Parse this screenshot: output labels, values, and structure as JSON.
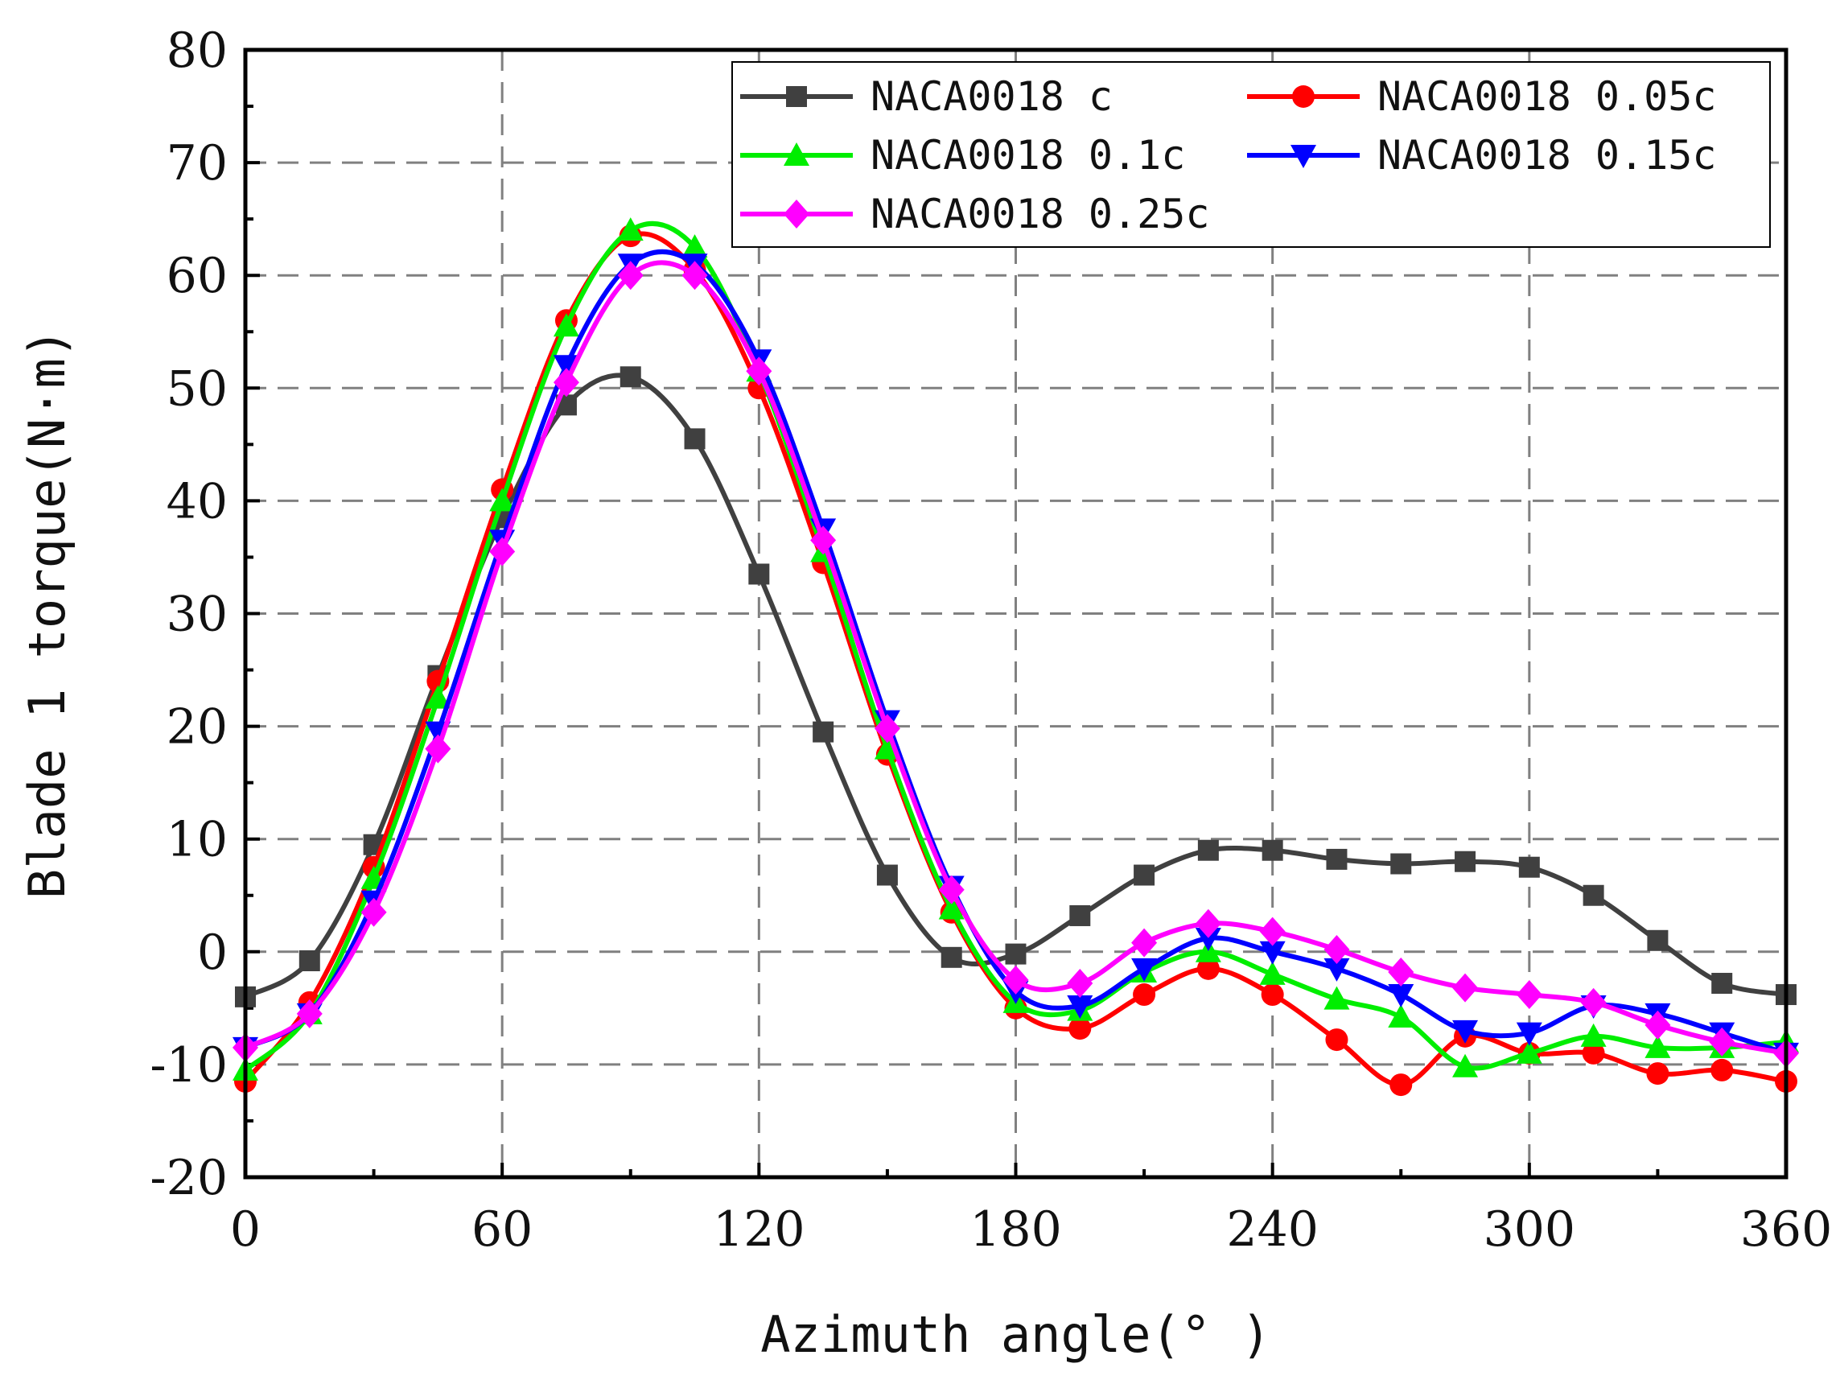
{
  "chart_data": {
    "type": "line",
    "title": "",
    "xlabel": "Azimuth angle(° )",
    "ylabel": "Blade 1 torque(N·m)",
    "xlim": [
      0,
      360
    ],
    "ylim": [
      -20,
      80
    ],
    "xticks": [
      "0",
      "60",
      "120",
      "180",
      "240",
      "300",
      "360"
    ],
    "yticks": [
      "-20",
      "-10",
      "0",
      "10",
      "20",
      "30",
      "40",
      "50",
      "60",
      "70",
      "80"
    ],
    "grid": true,
    "legend_position": "top-right",
    "series": [
      {
        "name": "NACA0018 c",
        "color": "#404040",
        "marker": "square",
        "points": [
          [
            0,
            -4
          ],
          [
            15,
            -0.8
          ],
          [
            30,
            9.5
          ],
          [
            45,
            24.5
          ],
          [
            60,
            38.5
          ],
          [
            75,
            48.5
          ],
          [
            90,
            51
          ],
          [
            105,
            45.5
          ],
          [
            120,
            33.5
          ],
          [
            135,
            19.5
          ],
          [
            150,
            6.8
          ],
          [
            165,
            -0.5
          ],
          [
            180,
            -0.2
          ],
          [
            195,
            3.2
          ],
          [
            210,
            6.8
          ],
          [
            225,
            9
          ],
          [
            240,
            9
          ],
          [
            255,
            8.2
          ],
          [
            270,
            7.8
          ],
          [
            285,
            8
          ],
          [
            300,
            7.5
          ],
          [
            315,
            5
          ],
          [
            330,
            1
          ],
          [
            345,
            -2.8
          ],
          [
            360,
            -3.8
          ]
        ]
      },
      {
        "name": "NACA0018 0.05c",
        "color": "#ff0000",
        "marker": "circle",
        "points": [
          [
            0,
            -11.5
          ],
          [
            15,
            -4.5
          ],
          [
            30,
            7.5
          ],
          [
            45,
            24
          ],
          [
            60,
            41
          ],
          [
            75,
            56
          ],
          [
            90,
            63.5
          ],
          [
            105,
            60.5
          ],
          [
            120,
            50
          ],
          [
            135,
            34.5
          ],
          [
            150,
            17.5
          ],
          [
            165,
            3.5
          ],
          [
            180,
            -5
          ],
          [
            195,
            -6.8
          ],
          [
            210,
            -3.8
          ],
          [
            225,
            -1.5
          ],
          [
            240,
            -3.8
          ],
          [
            255,
            -7.8
          ],
          [
            270,
            -11.8
          ],
          [
            285,
            -7.5
          ],
          [
            300,
            -9
          ],
          [
            315,
            -9
          ],
          [
            330,
            -10.8
          ],
          [
            345,
            -10.5
          ],
          [
            360,
            -11.5
          ]
        ]
      },
      {
        "name": "NACA0018 0.1c",
        "color": "#00ee00",
        "marker": "triangle-up",
        "points": [
          [
            0,
            -10.5
          ],
          [
            15,
            -5.5
          ],
          [
            30,
            6.5
          ],
          [
            45,
            22.5
          ],
          [
            60,
            40
          ],
          [
            75,
            55.5
          ],
          [
            90,
            64
          ],
          [
            105,
            62.5
          ],
          [
            120,
            51.5
          ],
          [
            135,
            35.5
          ],
          [
            150,
            18
          ],
          [
            165,
            3.8
          ],
          [
            180,
            -4.5
          ],
          [
            195,
            -5.2
          ],
          [
            210,
            -1.8
          ],
          [
            225,
            0
          ],
          [
            240,
            -2
          ],
          [
            255,
            -4.2
          ],
          [
            270,
            -5.8
          ],
          [
            285,
            -10.2
          ],
          [
            300,
            -9
          ],
          [
            315,
            -7.5
          ],
          [
            330,
            -8.5
          ],
          [
            345,
            -8.5
          ],
          [
            360,
            -8
          ]
        ]
      },
      {
        "name": "NACA0018 0.15c",
        "color": "#0000ff",
        "marker": "triangle-down",
        "points": [
          [
            0,
            -8.5
          ],
          [
            15,
            -5.5
          ],
          [
            30,
            4.5
          ],
          [
            45,
            19.5
          ],
          [
            60,
            36.5
          ],
          [
            75,
            52
          ],
          [
            90,
            61
          ],
          [
            105,
            61
          ],
          [
            120,
            52.5
          ],
          [
            135,
            37.5
          ],
          [
            150,
            20.5
          ],
          [
            165,
            5.8
          ],
          [
            180,
            -3.5
          ],
          [
            195,
            -4.8
          ],
          [
            210,
            -1.5
          ],
          [
            225,
            1.2
          ],
          [
            240,
            0
          ],
          [
            255,
            -1.5
          ],
          [
            270,
            -3.8
          ],
          [
            285,
            -7
          ],
          [
            300,
            -7.2
          ],
          [
            315,
            -4.8
          ],
          [
            330,
            -5.5
          ],
          [
            345,
            -7.2
          ],
          [
            360,
            -9
          ]
        ]
      },
      {
        "name": "NACA0018 0.25c",
        "color": "#ff00ff",
        "marker": "diamond",
        "points": [
          [
            0,
            -8.5
          ],
          [
            15,
            -5.5
          ],
          [
            30,
            3.5
          ],
          [
            45,
            18
          ],
          [
            60,
            35.5
          ],
          [
            75,
            50.5
          ],
          [
            90,
            60
          ],
          [
            105,
            60
          ],
          [
            120,
            51.5
          ],
          [
            135,
            36.5
          ],
          [
            150,
            19.8
          ],
          [
            165,
            5.5
          ],
          [
            180,
            -2.5
          ],
          [
            195,
            -2.8
          ],
          [
            210,
            0.8
          ],
          [
            225,
            2.5
          ],
          [
            240,
            1.8
          ],
          [
            255,
            0.2
          ],
          [
            270,
            -1.8
          ],
          [
            285,
            -3.2
          ],
          [
            300,
            -3.8
          ],
          [
            315,
            -4.5
          ],
          [
            330,
            -6.5
          ],
          [
            345,
            -8
          ],
          [
            360,
            -9
          ]
        ]
      }
    ]
  }
}
